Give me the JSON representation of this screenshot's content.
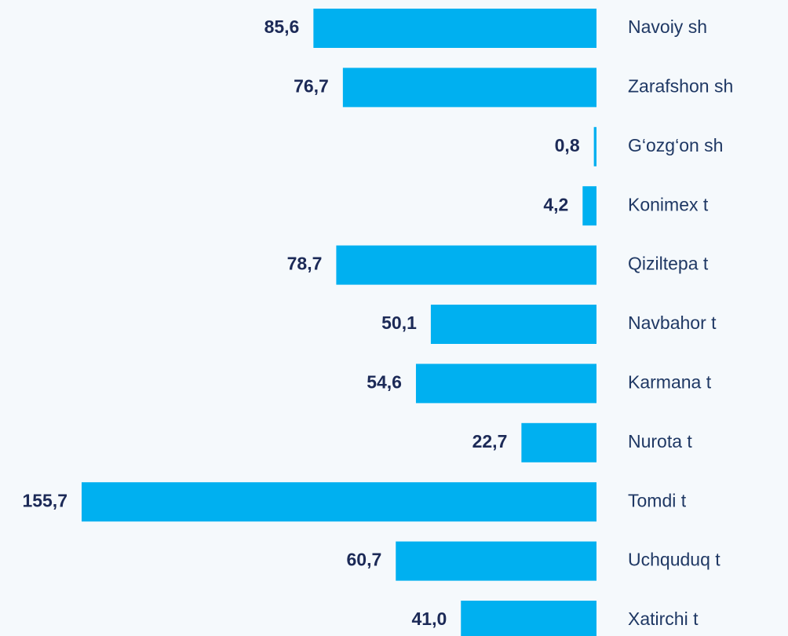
{
  "chart_data": {
    "type": "bar",
    "orientation": "horizontal",
    "color": "#00b0f0",
    "categories": [
      "Navoiy sh",
      "Zarafshon sh",
      "G‘ozg‘on sh",
      "Konimex t",
      "Qiziltepa t",
      "Navbahor t",
      "Karmana t",
      "Nurota t",
      "Tomdi t",
      "Uchquduq t",
      "Xatirchi t"
    ],
    "values": [
      85.6,
      76.7,
      0.8,
      4.2,
      78.7,
      50.1,
      54.6,
      22.7,
      155.7,
      60.7,
      41.0
    ],
    "value_labels": [
      "85,6",
      "76,7",
      "0,8",
      "4,2",
      "78,7",
      "50,1",
      "54,6",
      "22,7",
      "155,7",
      "60,7",
      "41,0"
    ]
  }
}
